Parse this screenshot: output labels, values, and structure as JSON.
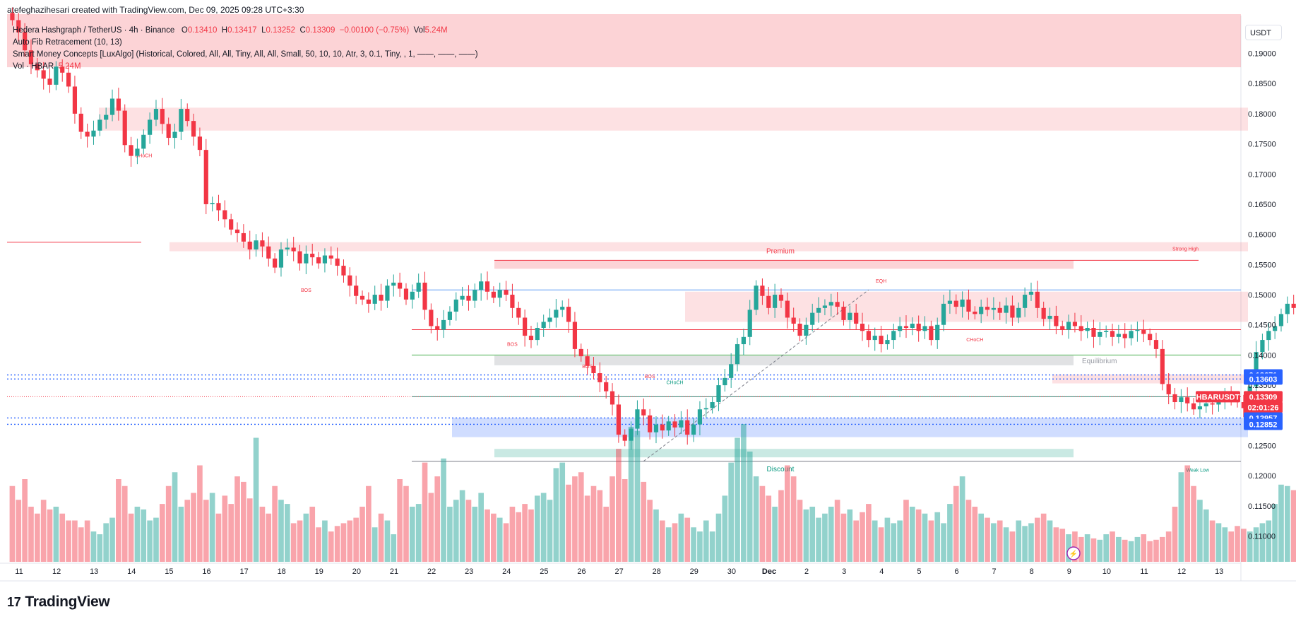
{
  "header": {
    "created_line": "atefeghazihesari created with TradingView.com, Dec 09, 2025 09:28 UTC+3:30"
  },
  "legend": {
    "symbol": "Hedera Hashgraph / TetherUS · 4h · Binance",
    "o_label": "O",
    "o_value": "0.13410",
    "h_label": "H",
    "h_value": "0.13417",
    "l_label": "L",
    "l_value": "0.13252",
    "c_label": "C",
    "c_value": "0.13309",
    "change": "−0.00100 (−0.75%)",
    "vol_label": "Vol",
    "vol_value": "5.24M",
    "indicator1": "Auto Fib Retracement (10, 13)",
    "indicator2": "Smart Money Concepts [LuxAlgo] (Historical, Colored, All, All, Tiny, All, All, Small, 50, 10, 10, Atr, 3, 0.1, Tiny, , 1, ——, ——, ——)",
    "indicator3_label": "Vol · HBAR",
    "indicator3_value": "5.24M"
  },
  "currency_button": "USDT",
  "brand": {
    "name": "TradingView",
    "logo": "17"
  },
  "colors": {
    "up": "#26a69a",
    "down": "#f23645",
    "blue": "#2962ff",
    "accent_red": "#f23645"
  },
  "chart_data": {
    "type": "candlestick",
    "symbol": "HBARUSDT",
    "interval": "4h",
    "ylim": [
      0.1055,
      0.1965
    ],
    "y_ticks": [
      "0.19000",
      "0.18500",
      "0.18000",
      "0.17500",
      "0.17000",
      "0.16500",
      "0.16000",
      "0.15500",
      "0.15000",
      "0.14500",
      "0.14000",
      "0.13500",
      "0.13000",
      "0.12500",
      "0.12000",
      "0.11500",
      "0.11000"
    ],
    "x_ticks": [
      "11",
      "12",
      "13",
      "14",
      "15",
      "16",
      "17",
      "18",
      "19",
      "20",
      "21",
      "22",
      "23",
      "24",
      "25",
      "26",
      "27",
      "28",
      "29",
      "30",
      "Dec",
      "2",
      "3",
      "4",
      "5",
      "6",
      "7",
      "8",
      "9",
      "10",
      "11",
      "12",
      "13"
    ],
    "closes": [
      0.1955,
      0.1935,
      0.1905,
      0.1882,
      0.1872,
      0.1858,
      0.1848,
      0.1878,
      0.1868,
      0.1845,
      0.18,
      0.177,
      0.1762,
      0.1772,
      0.179,
      0.1798,
      0.1825,
      0.1805,
      0.1748,
      0.173,
      0.1742,
      0.1765,
      0.179,
      0.1808,
      0.1783,
      0.176,
      0.177,
      0.1808,
      0.1788,
      0.1762,
      0.174,
      0.165,
      0.1652,
      0.164,
      0.1625,
      0.1608,
      0.1602,
      0.1588,
      0.1575,
      0.159,
      0.158,
      0.156,
      0.1545,
      0.1575,
      0.1578,
      0.1572,
      0.1552,
      0.1568,
      0.1562,
      0.1552,
      0.1565,
      0.156,
      0.1548,
      0.1532,
      0.1515,
      0.1498,
      0.1492,
      0.1485,
      0.15,
      0.149,
      0.1515,
      0.152,
      0.151,
      0.1492,
      0.1505,
      0.152,
      0.1475,
      0.1448,
      0.1442,
      0.1458,
      0.1472,
      0.1492,
      0.1498,
      0.149,
      0.1508,
      0.1522,
      0.1505,
      0.1495,
      0.1508,
      0.15,
      0.1478,
      0.1462,
      0.1432,
      0.1425,
      0.1445,
      0.1455,
      0.1462,
      0.1475,
      0.148,
      0.1455,
      0.141,
      0.1398,
      0.1382,
      0.137,
      0.1355,
      0.134,
      0.1318,
      0.1268,
      0.1258,
      0.1278,
      0.131,
      0.13,
      0.1272,
      0.1285,
      0.1275,
      0.129,
      0.128,
      0.1292,
      0.1268,
      0.1285,
      0.131,
      0.1312,
      0.1322,
      0.135,
      0.1362,
      0.1385,
      0.1418,
      0.143,
      0.1475,
      0.1515,
      0.1498,
      0.1478,
      0.15,
      0.149,
      0.1462,
      0.1452,
      0.1432,
      0.145,
      0.147,
      0.1478,
      0.1482,
      0.1488,
      0.148,
      0.1458,
      0.147,
      0.1452,
      0.144,
      0.1425,
      0.1432,
      0.1418,
      0.1425,
      0.144,
      0.1448,
      0.1445,
      0.1452,
      0.144,
      0.1448,
      0.1425,
      0.145,
      0.1485,
      0.149,
      0.148,
      0.1492,
      0.1472,
      0.1468,
      0.148,
      0.1475,
      0.1478,
      0.147,
      0.1482,
      0.1462,
      0.1478,
      0.15,
      0.1505,
      0.1478,
      0.146,
      0.1465,
      0.1448,
      0.1442,
      0.1455,
      0.1448,
      0.144,
      0.1445,
      0.143,
      0.1438,
      0.144,
      0.143,
      0.1435,
      0.1428,
      0.144,
      0.1442,
      0.1435,
      0.1425,
      0.141,
      0.1352,
      0.1335,
      0.1322,
      0.133,
      0.132,
      0.131,
      0.1315,
      0.132,
      0.1318,
      0.1328,
      0.1332,
      0.133,
      0.1322,
      0.1312,
      0.1348,
      0.1405,
      0.1425,
      0.144,
      0.1448,
      0.1468,
      0.1485,
      0.1478,
      0.147,
      0.1462,
      0.1468,
      0.1475,
      0.1462,
      0.1458,
      0.1448,
      0.1432,
      0.1425,
      0.1418,
      0.141,
      0.1402,
      0.1395,
      0.1402,
      0.1395,
      0.1385,
      0.1388,
      0.139,
      0.1375,
      0.1362,
      0.1355,
      0.1348,
      0.134,
      0.1332,
      0.133,
      0.1338,
      0.1335,
      0.133,
      0.1332,
      0.1328,
      0.1338,
      0.1335,
      0.133,
      0.1345,
      0.1352,
      0.134,
      0.135,
      0.133,
      0.1318,
      0.1305,
      0.1328,
      0.1352,
      0.131,
      0.13,
      0.1325,
      0.134,
      0.1348,
      0.1345,
      0.135,
      0.135,
      0.1348,
      0.1345,
      0.1348,
      0.134,
      0.1331
    ],
    "volume_relative": [
      0.55,
      0.45,
      0.6,
      0.4,
      0.35,
      0.45,
      0.38,
      0.4,
      0.35,
      0.3,
      0.3,
      0.25,
      0.3,
      0.22,
      0.2,
      0.28,
      0.32,
      0.6,
      0.55,
      0.35,
      0.4,
      0.38,
      0.3,
      0.32,
      0.42,
      0.55,
      0.65,
      0.4,
      0.45,
      0.5,
      0.7,
      0.45,
      0.5,
      0.35,
      0.48,
      0.42,
      0.62,
      0.58,
      0.46,
      0.9,
      0.4,
      0.35,
      0.55,
      0.45,
      0.42,
      0.28,
      0.3,
      0.35,
      0.4,
      0.25,
      0.3,
      0.22,
      0.26,
      0.28,
      0.3,
      0.32,
      0.4,
      0.55,
      0.25,
      0.35,
      0.3,
      0.2,
      0.6,
      0.55,
      0.4,
      0.42,
      0.72,
      0.5,
      0.62,
      0.75,
      0.4,
      0.45,
      0.52,
      0.45,
      0.4,
      0.5,
      0.38,
      0.35,
      0.32,
      0.28,
      0.4,
      0.36,
      0.42,
      0.38,
      0.48,
      0.5,
      0.45,
      0.68,
      0.72,
      0.56,
      0.62,
      0.65,
      0.48,
      0.55,
      0.52,
      0.4,
      0.62,
      0.82,
      0.6,
      0.98,
      0.95,
      0.58,
      0.45,
      0.38,
      0.3,
      0.25,
      0.28,
      0.35,
      0.32,
      0.25,
      0.22,
      0.3,
      0.22,
      0.35,
      0.48,
      0.72,
      0.9,
      1.0,
      0.8,
      0.62,
      0.55,
      0.48,
      0.4,
      0.52,
      0.7,
      0.62,
      0.45,
      0.38,
      0.4,
      0.32,
      0.35,
      0.4,
      0.45,
      0.35,
      0.38,
      0.3,
      0.36,
      0.42,
      0.3,
      0.25,
      0.32,
      0.28,
      0.3,
      0.45,
      0.4,
      0.38,
      0.35,
      0.3,
      0.36,
      0.28,
      0.42,
      0.55,
      0.62,
      0.45,
      0.4,
      0.35,
      0.32,
      0.28,
      0.3,
      0.25,
      0.22,
      0.3,
      0.26,
      0.28,
      0.32,
      0.35,
      0.3,
      0.25,
      0.24,
      0.2,
      0.22,
      0.18,
      0.2,
      0.17,
      0.16,
      0.2,
      0.22,
      0.18,
      0.16,
      0.15,
      0.18,
      0.2,
      0.15,
      0.16,
      0.18,
      0.22,
      0.4,
      0.65,
      0.7,
      0.55,
      0.45,
      0.38,
      0.3,
      0.28,
      0.25,
      0.22,
      0.26,
      0.24,
      0.22,
      0.25,
      0.28,
      0.3,
      0.42,
      0.56,
      0.55,
      0.52,
      0.56,
      0.42,
      0.38,
      0.36,
      0.45,
      0.4,
      0.35,
      0.32,
      0.38,
      0.3,
      0.26,
      0.36,
      0.28,
      0.22,
      0.3,
      0.32,
      0.42,
      0.28,
      0.24,
      0.22,
      0.2,
      0.18,
      0.16,
      0.14,
      0.12,
      0.14,
      0.12,
      0.13,
      0.15,
      0.14,
      0.16,
      0.2,
      0.18,
      0.16,
      0.15,
      0.13,
      0.22,
      0.14,
      0.2,
      0.16,
      0.3,
      0.45,
      0.38,
      0.28,
      0.2,
      0.17,
      0.26,
      0.3,
      0.28,
      0.14,
      0.12,
      0.15,
      0.18,
      0.16,
      0.1
    ]
  },
  "smc": {
    "zones": {
      "premium_label": "Premium",
      "equilibrium_label": "Equilibrium",
      "discount_label": "Discount",
      "premium_low": 0.1543,
      "premium_high": 0.1557,
      "equilibrium_low": 0.1383,
      "equilibrium_high": 0.1399,
      "discount_low": 0.12305,
      "discount_high": 0.12445
    },
    "order_blocks": [
      {
        "low": 0.1877,
        "high": 0.1965,
        "color": "red"
      },
      {
        "low": 0.1772,
        "high": 0.181,
        "color": "red"
      },
      {
        "low": 0.1572,
        "high": 0.1587,
        "color": "red"
      },
      {
        "low": 0.1455,
        "high": 0.1505,
        "color": "red"
      },
      {
        "low": 0.1353,
        "high": 0.1368,
        "color": "red"
      },
      {
        "low": 0.1264,
        "high": 0.1296,
        "color": "blue"
      }
    ],
    "labels": [
      "CHoCH",
      "BOS",
      "BOS",
      "BOS",
      "BOS",
      "CHoCH",
      "EQH",
      "CHoCH",
      "EQL",
      "BOS",
      "Strong High",
      "Weak Low"
    ],
    "price_lines": {
      "strong_high": 0.1557,
      "weak_low": 0.1224,
      "red_level_1": 0.1587,
      "red_level_2": 0.1442,
      "green_level": 0.14,
      "blue_top": 0.1508,
      "last_price_line": 0.13309
    }
  },
  "price_axis_labels": [
    {
      "value": "0.13671",
      "kind": "blue"
    },
    {
      "value": "0.13603",
      "kind": "blue"
    },
    {
      "value": "HBARUSDT",
      "kind": "red"
    },
    {
      "value": "0.13309",
      "kind": "red"
    },
    {
      "value": "02:01:26",
      "kind": "red"
    },
    {
      "value": "0.12957",
      "kind": "blue"
    },
    {
      "value": "0.12852",
      "kind": "blue"
    }
  ]
}
